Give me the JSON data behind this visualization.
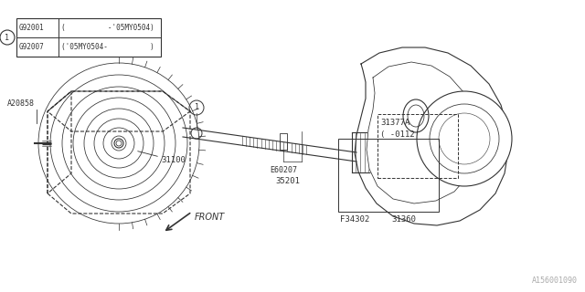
{
  "bg_color": "#ffffff",
  "line_color": "#333333",
  "title_ref": "A156001090",
  "legend_rows": [
    {
      "part": "G92001",
      "desc": "(          -'05MY0504)"
    },
    {
      "part": "G92007",
      "desc": "('05MY0504-          )"
    }
  ]
}
